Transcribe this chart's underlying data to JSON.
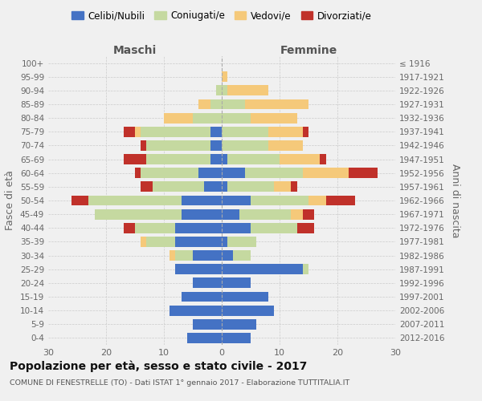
{
  "age_groups": [
    "100+",
    "95-99",
    "90-94",
    "85-89",
    "80-84",
    "75-79",
    "70-74",
    "65-69",
    "60-64",
    "55-59",
    "50-54",
    "45-49",
    "40-44",
    "35-39",
    "30-34",
    "25-29",
    "20-24",
    "15-19",
    "10-14",
    "5-9",
    "0-4"
  ],
  "birth_years": [
    "≤ 1916",
    "1917-1921",
    "1922-1926",
    "1927-1931",
    "1932-1936",
    "1937-1941",
    "1942-1946",
    "1947-1951",
    "1952-1956",
    "1957-1961",
    "1962-1966",
    "1967-1971",
    "1972-1976",
    "1977-1981",
    "1982-1986",
    "1987-1991",
    "1992-1996",
    "1997-2001",
    "2002-2006",
    "2007-2011",
    "2012-2016"
  ],
  "colors": {
    "celibi": "#4472c4",
    "coniugati": "#c5d9a0",
    "vedovi": "#f5c97a",
    "divorziati": "#c0312a"
  },
  "maschi": {
    "celibi": [
      0,
      0,
      0,
      0,
      0,
      2,
      2,
      2,
      4,
      3,
      7,
      7,
      8,
      8,
      5,
      8,
      5,
      7,
      9,
      5,
      6
    ],
    "coniugati": [
      0,
      0,
      1,
      2,
      5,
      12,
      11,
      11,
      10,
      9,
      16,
      15,
      7,
      5,
      3,
      0,
      0,
      0,
      0,
      0,
      0
    ],
    "vedovi": [
      0,
      0,
      0,
      2,
      5,
      1,
      0,
      0,
      0,
      0,
      0,
      0,
      0,
      1,
      1,
      0,
      0,
      0,
      0,
      0,
      0
    ],
    "divorziati": [
      0,
      0,
      0,
      0,
      0,
      2,
      1,
      4,
      1,
      2,
      3,
      0,
      2,
      0,
      0,
      0,
      0,
      0,
      0,
      0,
      0
    ]
  },
  "femmine": {
    "celibi": [
      0,
      0,
      0,
      0,
      0,
      0,
      0,
      1,
      4,
      1,
      5,
      3,
      5,
      1,
      2,
      14,
      5,
      8,
      9,
      6,
      5
    ],
    "coniugati": [
      0,
      0,
      1,
      4,
      5,
      8,
      8,
      9,
      10,
      8,
      10,
      9,
      8,
      5,
      3,
      1,
      0,
      0,
      0,
      0,
      0
    ],
    "vedovi": [
      0,
      1,
      7,
      11,
      8,
      6,
      6,
      7,
      8,
      3,
      3,
      2,
      0,
      0,
      0,
      0,
      0,
      0,
      0,
      0,
      0
    ],
    "divorziati": [
      0,
      0,
      0,
      0,
      0,
      1,
      0,
      1,
      5,
      1,
      5,
      2,
      3,
      0,
      0,
      0,
      0,
      0,
      0,
      0,
      0
    ]
  },
  "xlim": 30,
  "title": "Popolazione per età, sesso e stato civile - 2017",
  "subtitle": "COMUNE DI FENESTRELLE (TO) - Dati ISTAT 1° gennaio 2017 - Elaborazione TUTTITALIA.IT",
  "ylabel": "Fasce di età",
  "ylabel_right": "Anni di nascita",
  "xlabel_maschi": "Maschi",
  "xlabel_femmine": "Femmine",
  "legend_labels": [
    "Celibi/Nubili",
    "Coniugati/e",
    "Vedovi/e",
    "Divorziati/e"
  ],
  "background_color": "#f0f0f0"
}
